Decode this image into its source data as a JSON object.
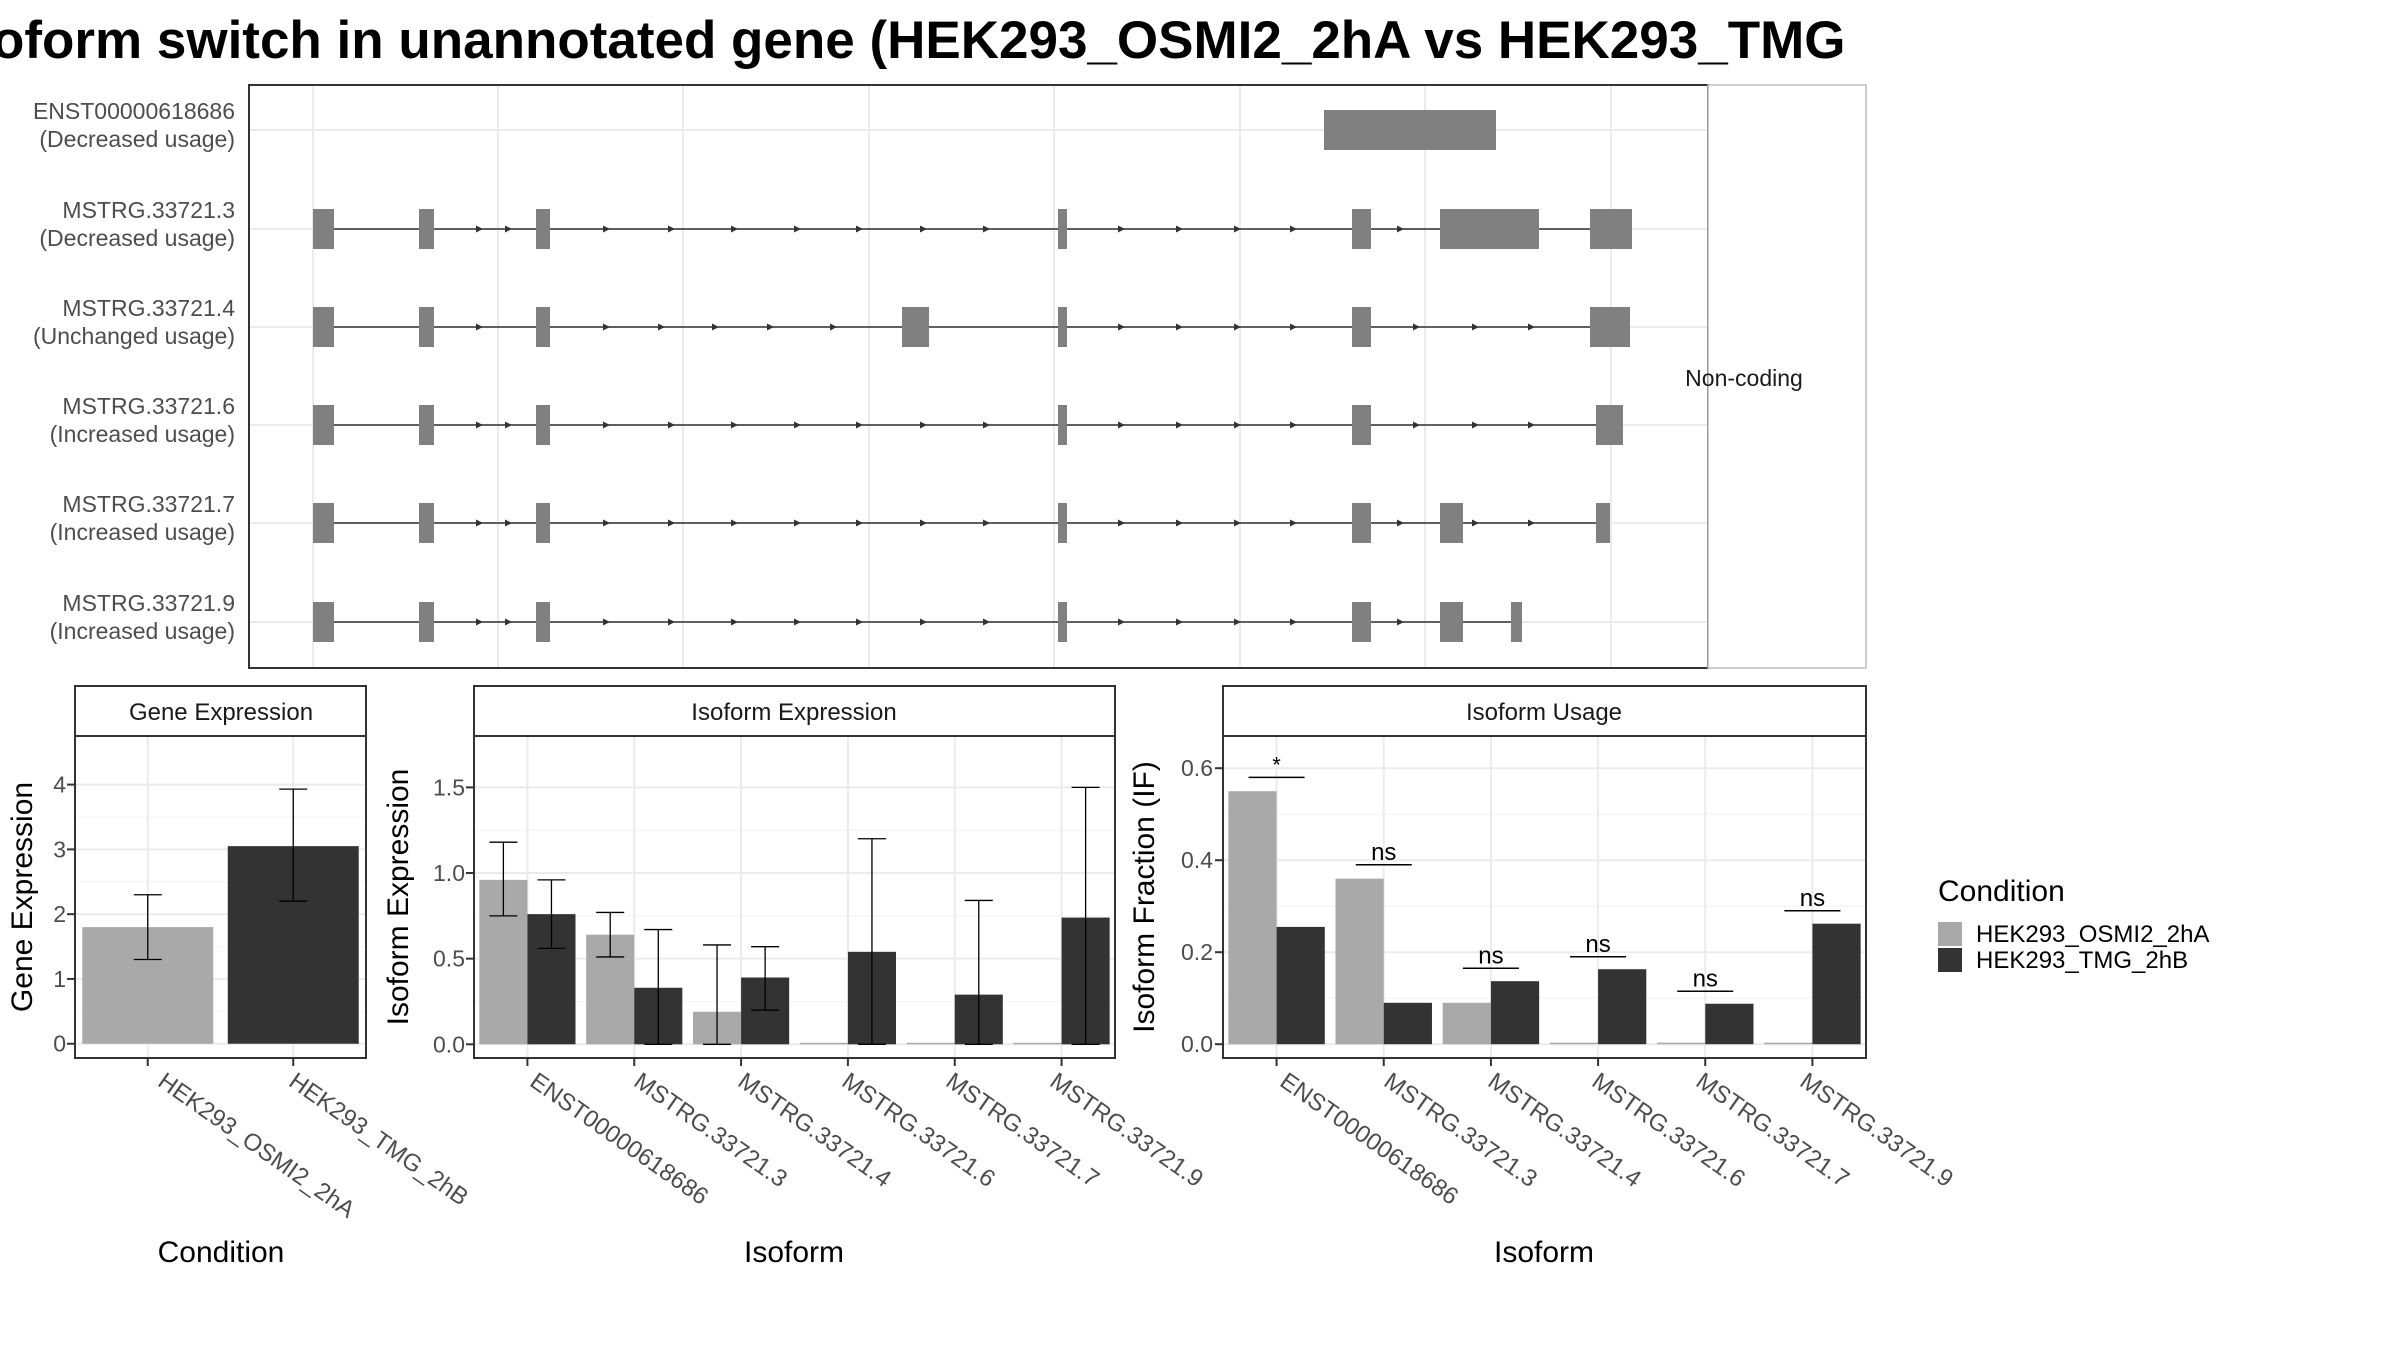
{
  "title": "oform switch in unannotated gene (HEK293_OSMI2_2hA vs HEK293_TMG",
  "colors": {
    "exon": "#808080",
    "cond_a": "#a9a9a9",
    "cond_b": "#333333",
    "grid": "#ebebeb",
    "frame": "#333333",
    "strip_border": "#333333",
    "strip_bg": "#ffffff"
  },
  "structure_panel": {
    "side_label": "Non-coding",
    "transcripts": [
      {
        "id": "ENST00000618686",
        "usage": "(Decreased usage)",
        "exons": [
          [
            1324,
            1496
          ]
        ],
        "arrows": []
      },
      {
        "id": "MSTRG.33721.3",
        "usage": "(Decreased usage)",
        "exons": [
          [
            313,
            334
          ],
          [
            419,
            434
          ],
          [
            536,
            550
          ],
          [
            1058,
            1067
          ],
          [
            1352,
            1371
          ],
          [
            1440,
            1539
          ],
          [
            1590,
            1632
          ]
        ],
        "arrows": [
          483,
          512,
          610,
          675,
          738,
          801,
          863,
          927,
          990,
          1125,
          1183,
          1241,
          1297,
          1404
        ]
      },
      {
        "id": "MSTRG.33721.4",
        "usage": "(Unchanged usage)",
        "exons": [
          [
            313,
            334
          ],
          [
            419,
            434
          ],
          [
            536,
            550
          ],
          [
            902,
            929
          ],
          [
            1058,
            1067
          ],
          [
            1352,
            1371
          ],
          [
            1590,
            1630
          ]
        ],
        "arrows": [
          483,
          610,
          665,
          719,
          774,
          837,
          1125,
          1183,
          1241,
          1297,
          1420,
          1479,
          1535
        ]
      },
      {
        "id": "MSTRG.33721.6",
        "usage": "(Increased usage)",
        "exons": [
          [
            313,
            334
          ],
          [
            419,
            434
          ],
          [
            536,
            550
          ],
          [
            1058,
            1067
          ],
          [
            1352,
            1371
          ],
          [
            1596,
            1623
          ]
        ],
        "arrows": [
          483,
          512,
          610,
          675,
          738,
          801,
          863,
          927,
          990,
          1125,
          1183,
          1241,
          1297,
          1420,
          1479,
          1535
        ]
      },
      {
        "id": "MSTRG.33721.7",
        "usage": "(Increased usage)",
        "exons": [
          [
            313,
            334
          ],
          [
            419,
            434
          ],
          [
            536,
            550
          ],
          [
            1058,
            1067
          ],
          [
            1352,
            1371
          ],
          [
            1440,
            1463
          ],
          [
            1596,
            1610
          ]
        ],
        "arrows": [
          483,
          512,
          610,
          675,
          738,
          801,
          863,
          927,
          990,
          1125,
          1183,
          1241,
          1297,
          1404,
          1479,
          1535
        ]
      },
      {
        "id": "MSTRG.33721.9",
        "usage": "(Increased usage)",
        "exons": [
          [
            313,
            334
          ],
          [
            419,
            434
          ],
          [
            536,
            550
          ],
          [
            1058,
            1067
          ],
          [
            1352,
            1371
          ],
          [
            1440,
            1463
          ],
          [
            1511,
            1522
          ]
        ],
        "arrows": [
          483,
          512,
          610,
          675,
          738,
          801,
          863,
          927,
          990,
          1125,
          1183,
          1241,
          1297,
          1404
        ]
      }
    ]
  },
  "chart_data": [
    {
      "type": "bar",
      "title": "Gene Expression",
      "xlabel": "Condition",
      "ylabel": "Gene Expression",
      "categories": [
        "HEK293_OSMI2_2hA",
        "HEK293_TMG_2hB"
      ],
      "ylim": [
        -0.22,
        4.75
      ],
      "yticks": [
        0,
        1,
        2,
        3,
        4
      ],
      "series": [
        {
          "name": "HEK293_OSMI2_2hA",
          "values": [
            1.8,
            null
          ],
          "err_low": [
            1.3,
            null
          ],
          "err_high": [
            2.3,
            null
          ]
        },
        {
          "name": "HEK293_TMG_2hB",
          "values": [
            null,
            3.05
          ],
          "err_low": [
            null,
            2.2
          ],
          "err_high": [
            null,
            3.93
          ]
        }
      ]
    },
    {
      "type": "bar",
      "title": "Isoform Expression",
      "xlabel": "Isoform",
      "ylabel": "Isoform Expression",
      "categories": [
        "ENST00000618686",
        "MSTRG.33721.3",
        "MSTRG.33721.4",
        "MSTRG.33721.6",
        "MSTRG.33721.7",
        "MSTRG.33721.9"
      ],
      "ylim": [
        -0.08,
        1.8
      ],
      "yticks": [
        0.0,
        0.5,
        1.0,
        1.5
      ],
      "series": [
        {
          "name": "HEK293_OSMI2_2hA",
          "values": [
            0.96,
            0.64,
            0.19,
            0.0,
            0.0,
            0.0
          ],
          "err_low": [
            0.75,
            0.51,
            0.0,
            null,
            null,
            null
          ],
          "err_high": [
            1.18,
            0.77,
            0.58,
            null,
            null,
            null
          ]
        },
        {
          "name": "HEK293_TMG_2hB",
          "values": [
            0.76,
            0.33,
            0.39,
            0.54,
            0.29,
            0.74
          ],
          "err_low": [
            0.56,
            0.0,
            0.2,
            0.0,
            0.0,
            0.0
          ],
          "err_high": [
            0.96,
            0.67,
            0.57,
            1.2,
            0.84,
            1.5
          ]
        }
      ]
    },
    {
      "type": "bar",
      "title": "Isoform Usage",
      "xlabel": "Isoform",
      "ylabel": "Isoform Fraction (IF)",
      "categories": [
        "ENST00000618686",
        "MSTRG.33721.3",
        "MSTRG.33721.4",
        "MSTRG.33721.6",
        "MSTRG.33721.7",
        "MSTRG.33721.9"
      ],
      "ylim": [
        -0.03,
        0.67
      ],
      "yticks": [
        0.0,
        0.2,
        0.4,
        0.6
      ],
      "series": [
        {
          "name": "HEK293_OSMI2_2hA",
          "values": [
            0.55,
            0.36,
            0.09,
            0.0,
            0.0,
            0.0
          ]
        },
        {
          "name": "HEK293_TMG_2hB",
          "values": [
            0.255,
            0.09,
            0.137,
            0.163,
            0.088,
            0.262
          ]
        }
      ],
      "significance": [
        {
          "label": "*",
          "y": 0.58
        },
        {
          "label": "ns",
          "y": 0.39
        },
        {
          "label": "ns",
          "y": 0.165
        },
        {
          "label": "ns",
          "y": 0.19
        },
        {
          "label": "ns",
          "y": 0.115
        },
        {
          "label": "ns",
          "y": 0.29
        }
      ]
    }
  ],
  "legend": {
    "title": "Condition",
    "items": [
      {
        "label": "HEK293_OSMI2_2hA",
        "color_key": "cond_a"
      },
      {
        "label": "HEK293_TMG_2hB",
        "color_key": "cond_b"
      }
    ]
  }
}
